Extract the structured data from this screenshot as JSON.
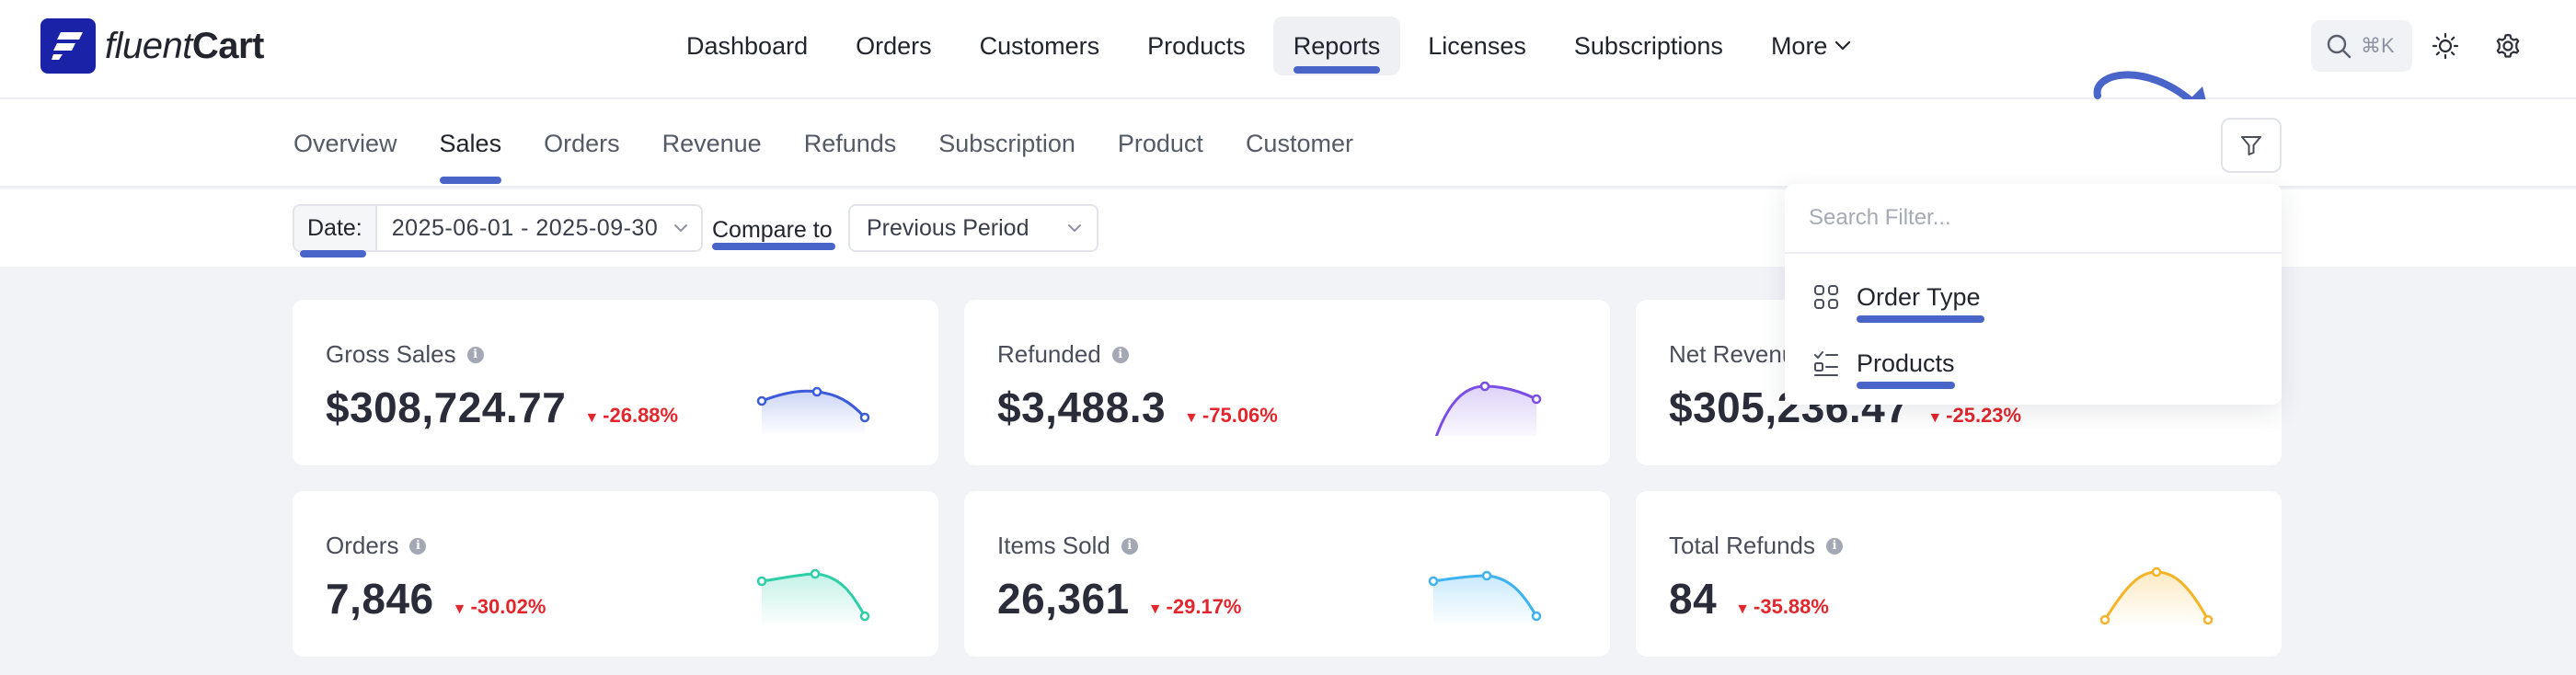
{
  "app": {
    "logo_light": "fluent",
    "logo_bold": "Cart"
  },
  "main_nav": [
    {
      "label": "Dashboard",
      "active": false
    },
    {
      "label": "Orders",
      "active": false
    },
    {
      "label": "Customers",
      "active": false
    },
    {
      "label": "Products",
      "active": false
    },
    {
      "label": "Reports",
      "active": true
    },
    {
      "label": "Licenses",
      "active": false
    },
    {
      "label": "Subscriptions",
      "active": false
    },
    {
      "label": "More",
      "active": false
    }
  ],
  "search": {
    "shortcut": "⌘K"
  },
  "report_tabs": [
    {
      "label": "Overview",
      "active": false
    },
    {
      "label": "Sales",
      "active": true
    },
    {
      "label": "Orders",
      "active": false
    },
    {
      "label": "Revenue",
      "active": false
    },
    {
      "label": "Refunds",
      "active": false
    },
    {
      "label": "Subscription",
      "active": false
    },
    {
      "label": "Product",
      "active": false
    },
    {
      "label": "Customer",
      "active": false
    }
  ],
  "filters": {
    "date_label": "Date:",
    "date_value": "2025-06-01 - 2025-09-30",
    "compare_label": "Compare to",
    "compare_value": "Previous Period"
  },
  "filter_dropdown": {
    "search_placeholder": "Search Filter...",
    "items": [
      {
        "label": "Order Type",
        "icon": "grid-icon"
      },
      {
        "label": "Products",
        "icon": "checklist-icon"
      }
    ]
  },
  "cards": [
    {
      "label": "Gross Sales",
      "value": "$308,724.77",
      "delta": "-26.88%",
      "color": "#3b5bdb"
    },
    {
      "label": "Refunded",
      "value": "$3,488.3",
      "delta": "-75.06%",
      "color": "#7b4ee6"
    },
    {
      "label": "Net Revenue",
      "value": "$305,236.47",
      "delta": "-25.23%",
      "color": "#3b5bdb"
    },
    {
      "label": "Orders",
      "value": "7,846",
      "delta": "-30.02%",
      "color": "#2ecfa8"
    },
    {
      "label": "Items Sold",
      "value": "26,361",
      "delta": "-29.17%",
      "color": "#3fb3f2"
    },
    {
      "label": "Total Refunds",
      "value": "84",
      "delta": "-35.88%",
      "color": "#f5b428"
    }
  ],
  "colors": {
    "accent": "#4a65c9",
    "negative": "#e2262c",
    "brand": "#1a23a8"
  }
}
